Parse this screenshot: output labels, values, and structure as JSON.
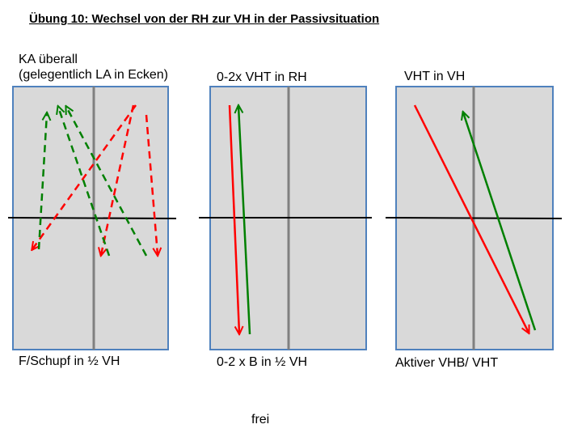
{
  "title": "Übung 10: Wechsel von der RH zur VH in der Passivsituation",
  "colors": {
    "panel_fill": "#d9d9d9",
    "panel_border": "#4f81bd",
    "center_line": "#808080",
    "red_arrow": "#ff0000",
    "green_arrow": "#008000"
  },
  "panels": [
    {
      "top_label_line1": "KA überall",
      "top_label_line2": "(gelegentlich LA in Ecken)",
      "bottom_label": "F/Schupf in ½ VH",
      "arrow_style": "dashed"
    },
    {
      "top_label": "0-2x VHT in RH",
      "bottom_label": "0-2 x B in ½ VH",
      "arrow_style": "solid"
    },
    {
      "top_label": "VHT in VH",
      "bottom_label": "Aktiver VHB/ VHT",
      "arrow_style": "solid"
    }
  ],
  "footer": "frei"
}
